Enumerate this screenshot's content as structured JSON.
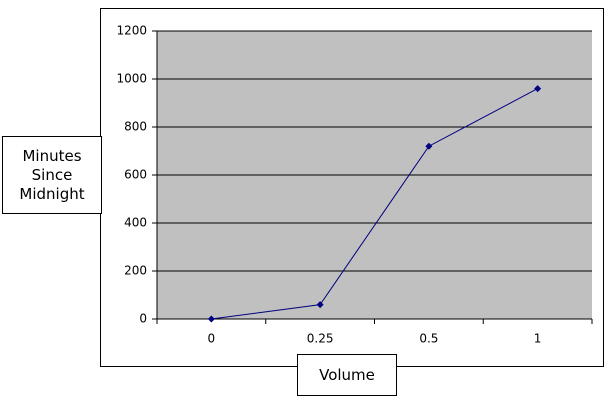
{
  "chart_data": {
    "type": "line",
    "y_label": "Minutes Since Midnight",
    "x_label": "Volume",
    "categories": [
      "0",
      "0.25",
      "0.5",
      "1"
    ],
    "series": [
      {
        "color": "#000080",
        "values": [
          0,
          60,
          720,
          960
        ]
      }
    ],
    "ylim": [
      0,
      1200
    ],
    "yticks": [
      0,
      200,
      400,
      600,
      800,
      1000,
      1200
    ],
    "grid": true,
    "plot_background": "#c0c0c0"
  }
}
